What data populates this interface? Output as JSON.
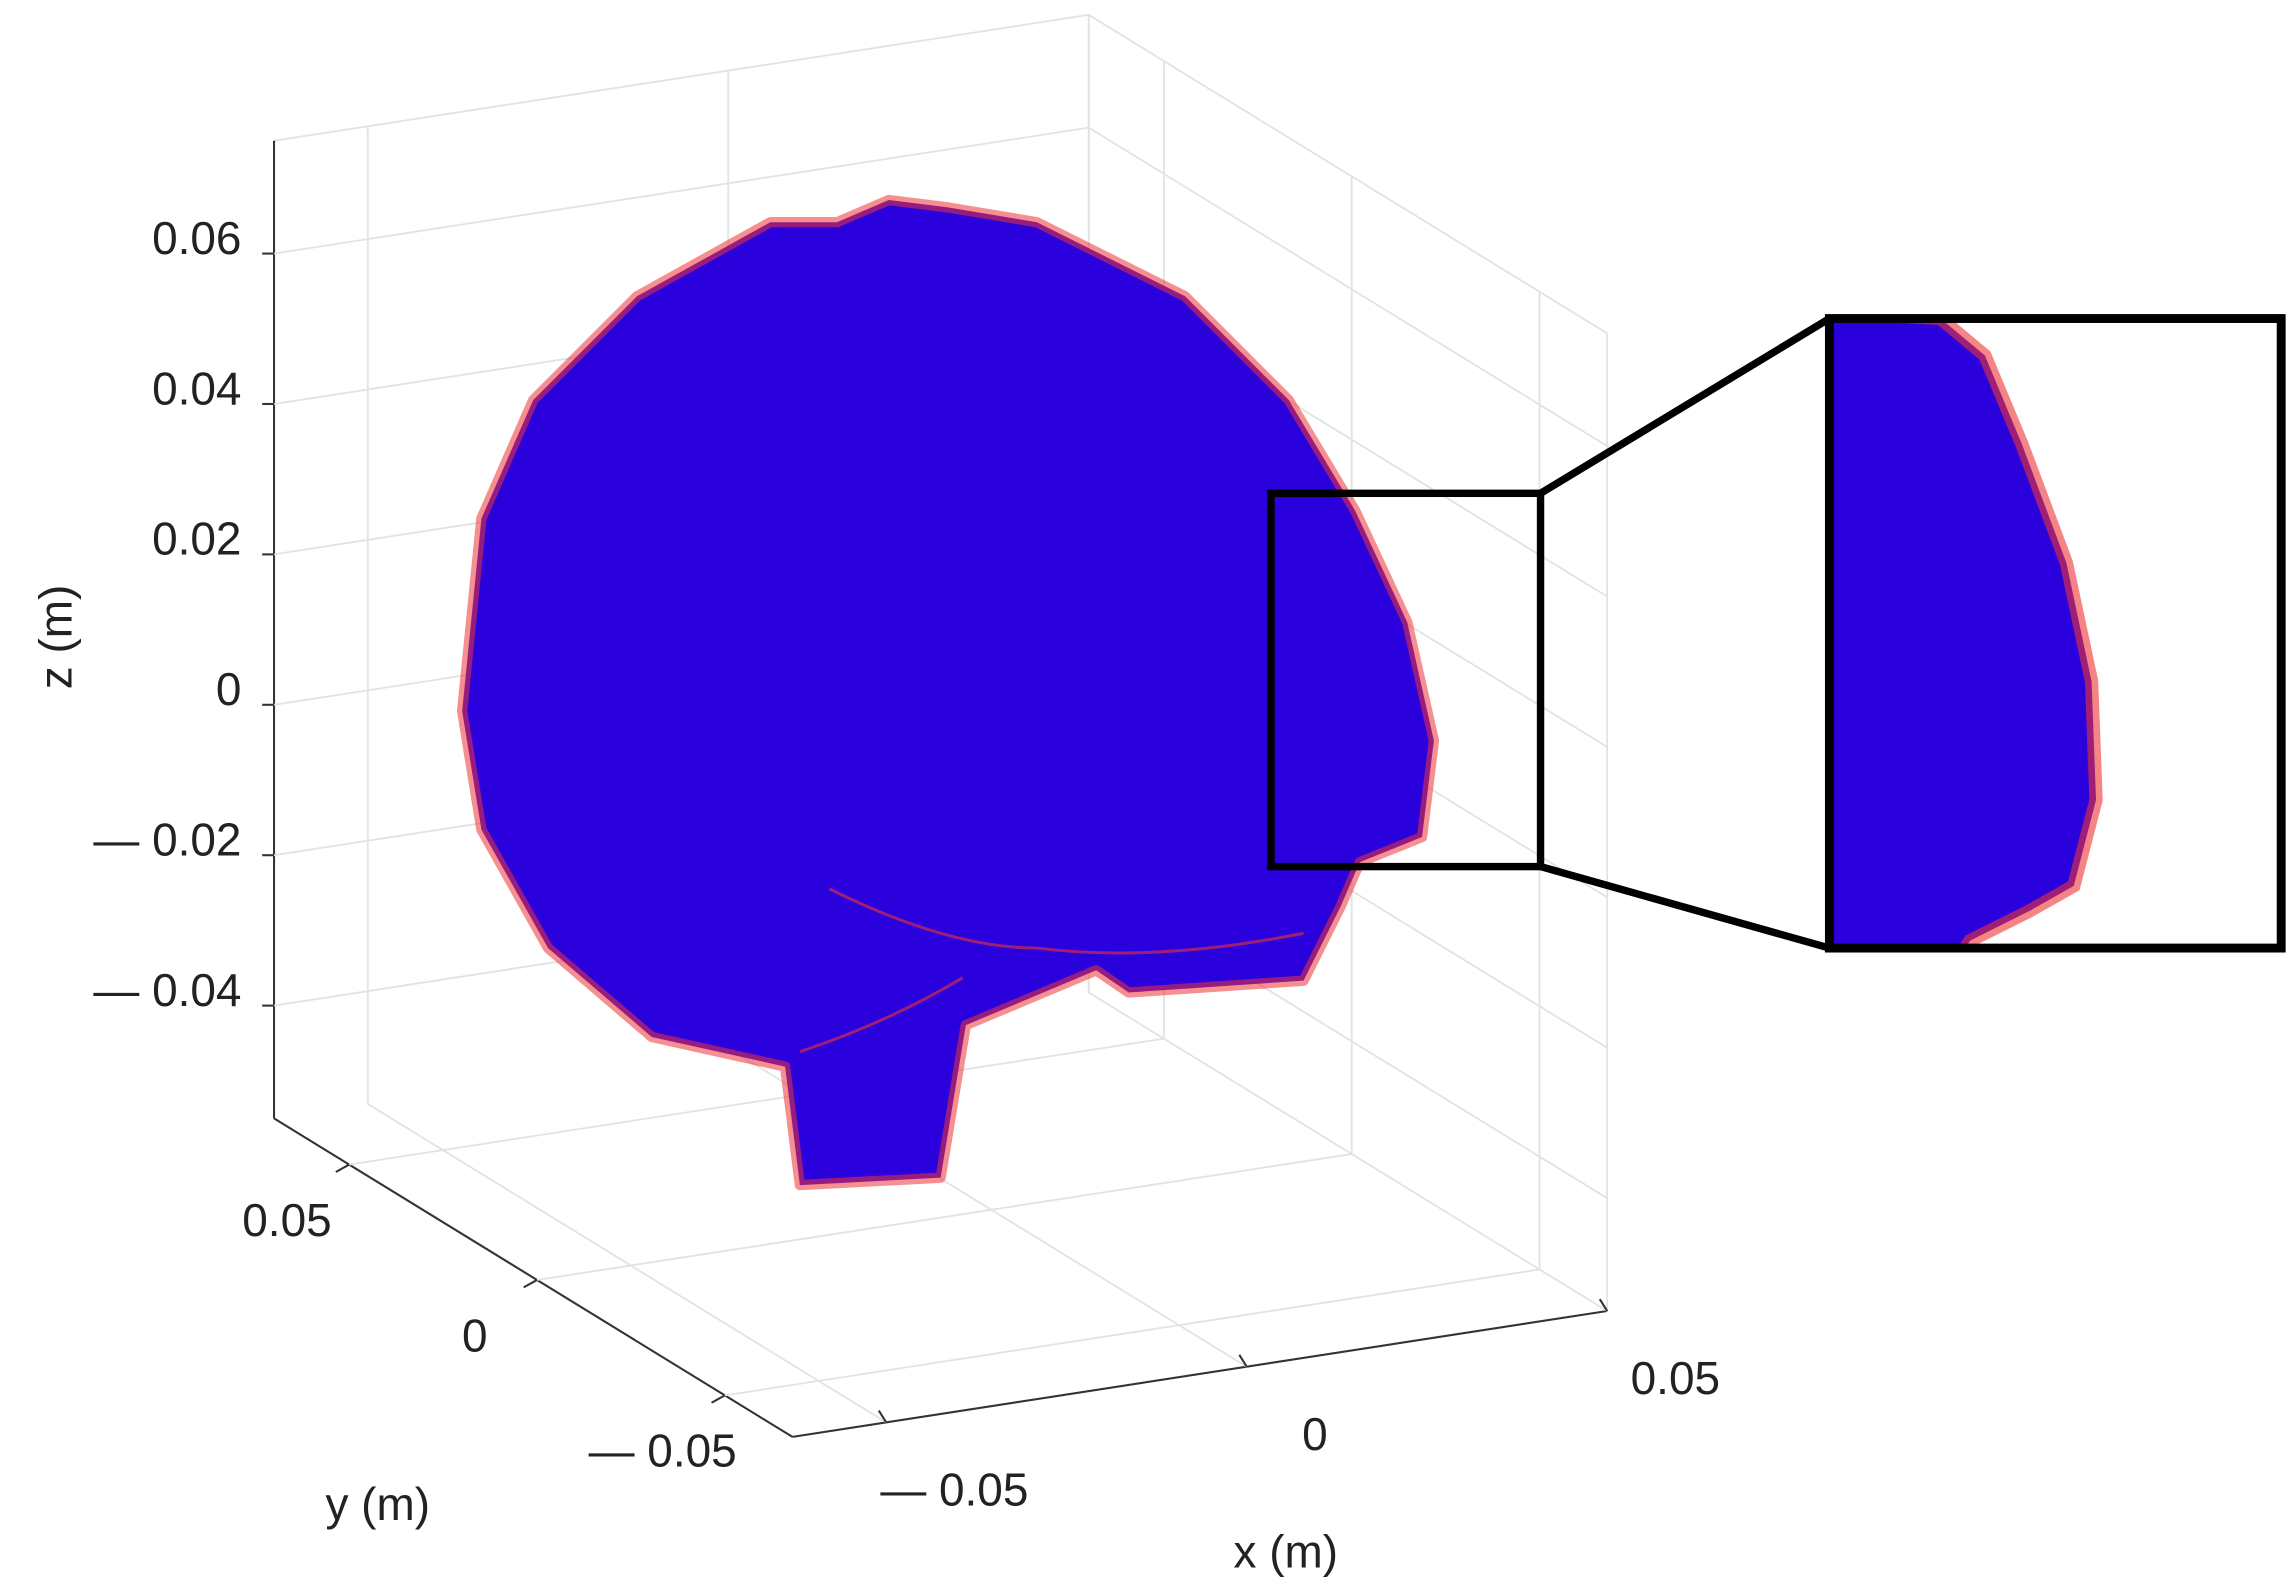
{
  "chart_data": {
    "type": "surface3d",
    "xlabel": "x (m)",
    "ylabel": "y (m)",
    "zlabel": "z (m)",
    "xlim": [
      -0.063,
      0.05
    ],
    "ylim": [
      -0.068,
      0.07
    ],
    "zlim": [
      -0.055,
      0.075
    ],
    "xticks": [
      {
        "value": -0.05,
        "label": "— 0.05"
      },
      0,
      0.05
    ],
    "yticks": [
      {
        "value": -0.05,
        "label": "— 0.05"
      },
      0,
      0.05
    ],
    "zticks": [
      {
        "value": -0.04,
        "label": "— 0.04"
      },
      {
        "value": -0.02,
        "label": "— 0.02"
      },
      0,
      0.02,
      0.04,
      0.06
    ],
    "grid": true,
    "color": "#2a00dc",
    "edge_color": "#ee3333"
  }
}
